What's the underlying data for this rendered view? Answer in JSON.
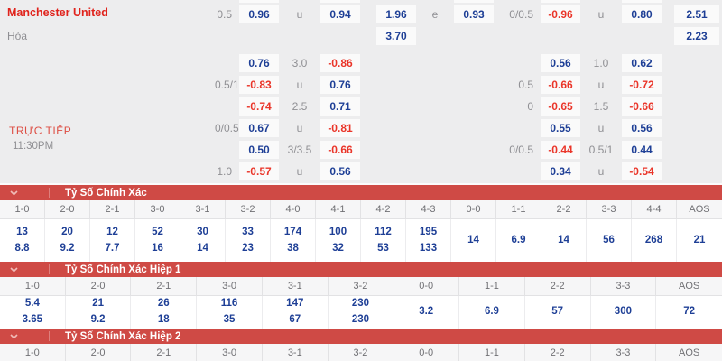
{
  "match": {
    "home_team": "Manchester United",
    "draw_label": "Hòa",
    "live_label": "TRỰC TIẾP",
    "time": "11:30PM"
  },
  "colors": {
    "board_bg": "#ededee",
    "cell_bg": "#fafafa",
    "odds_positive": "#1e3f96",
    "odds_negative": "#ea3529",
    "label_gray": "#8f8f93",
    "team_red": "#e0231c",
    "section_bar_red": "#cf4a45"
  },
  "odds_grid": {
    "rows": [
      {
        "a": "0.5",
        "b": "0.96",
        "c": "u",
        "d": "0.94",
        "e": "1.96",
        "f": "e",
        "g": "0.93",
        "h": "0/0.5",
        "i": "-0.96",
        "j": "u",
        "k": "0.80",
        "l": "2.51"
      },
      {
        "e": "3.70",
        "l": "2.23"
      },
      {
        "b": "0.76",
        "c": "3.0",
        "d": "-0.86",
        "i": "0.56",
        "j": "1.0",
        "k": "0.62"
      },
      {
        "a": "0.5/1",
        "b": "-0.83",
        "c": "u",
        "d": "0.76",
        "h": "0.5",
        "i": "-0.66",
        "j": "u",
        "k": "-0.72"
      },
      {
        "b": "-0.74",
        "c": "2.5",
        "d": "0.71",
        "h": "0",
        "i": "-0.65",
        "j": "1.5",
        "k": "-0.66"
      },
      {
        "a": "0/0.5",
        "b": "0.67",
        "c": "u",
        "d": "-0.81",
        "i": "0.55",
        "j": "u",
        "k": "0.56"
      },
      {
        "b": "0.50",
        "c": "3/3.5",
        "d": "-0.66",
        "h": "0/0.5",
        "i": "-0.44",
        "j": "0.5/1",
        "k": "0.44"
      },
      {
        "a": "1.0",
        "b": "-0.57",
        "c": "u",
        "d": "0.56",
        "i": "0.34",
        "j": "u",
        "k": "-0.54"
      }
    ]
  },
  "score_sections": [
    {
      "title": "Tỷ Số Chính Xác",
      "columns": [
        "1-0",
        "2-0",
        "2-1",
        "3-0",
        "3-1",
        "3-2",
        "4-0",
        "4-1",
        "4-2",
        "4-3",
        "0-0",
        "1-1",
        "2-2",
        "3-3",
        "4-4",
        "AOS"
      ],
      "cells": [
        [
          "13",
          "8.8"
        ],
        [
          "20",
          "9.2"
        ],
        [
          "12",
          "7.7"
        ],
        [
          "52",
          "16"
        ],
        [
          "30",
          "14"
        ],
        [
          "33",
          "23"
        ],
        [
          "174",
          "38"
        ],
        [
          "100",
          "32"
        ],
        [
          "112",
          "53"
        ],
        [
          "195",
          "133"
        ],
        [
          "14"
        ],
        [
          "6.9"
        ],
        [
          "14"
        ],
        [
          "56"
        ],
        [
          "268"
        ],
        [
          "21"
        ]
      ]
    },
    {
      "title": "Tỷ Số Chính Xác Hiệp 1",
      "columns": [
        "1-0",
        "2-0",
        "2-1",
        "3-0",
        "3-1",
        "3-2",
        "0-0",
        "1-1",
        "2-2",
        "3-3",
        "AOS"
      ],
      "cells": [
        [
          "5.4",
          "3.65"
        ],
        [
          "21",
          "9.2"
        ],
        [
          "26",
          "18"
        ],
        [
          "116",
          "35"
        ],
        [
          "147",
          "67"
        ],
        [
          "230",
          "230"
        ],
        [
          "3.2"
        ],
        [
          "6.9"
        ],
        [
          "57"
        ],
        [
          "300"
        ],
        [
          "72"
        ]
      ]
    },
    {
      "title": "Tỷ Số Chính Xác Hiệp 2",
      "columns": [
        "1-0",
        "2-0",
        "2-1",
        "3-0",
        "3-1",
        "3-2",
        "0-0",
        "1-1",
        "2-2",
        "3-3",
        "AOS"
      ],
      "cells": []
    }
  ]
}
